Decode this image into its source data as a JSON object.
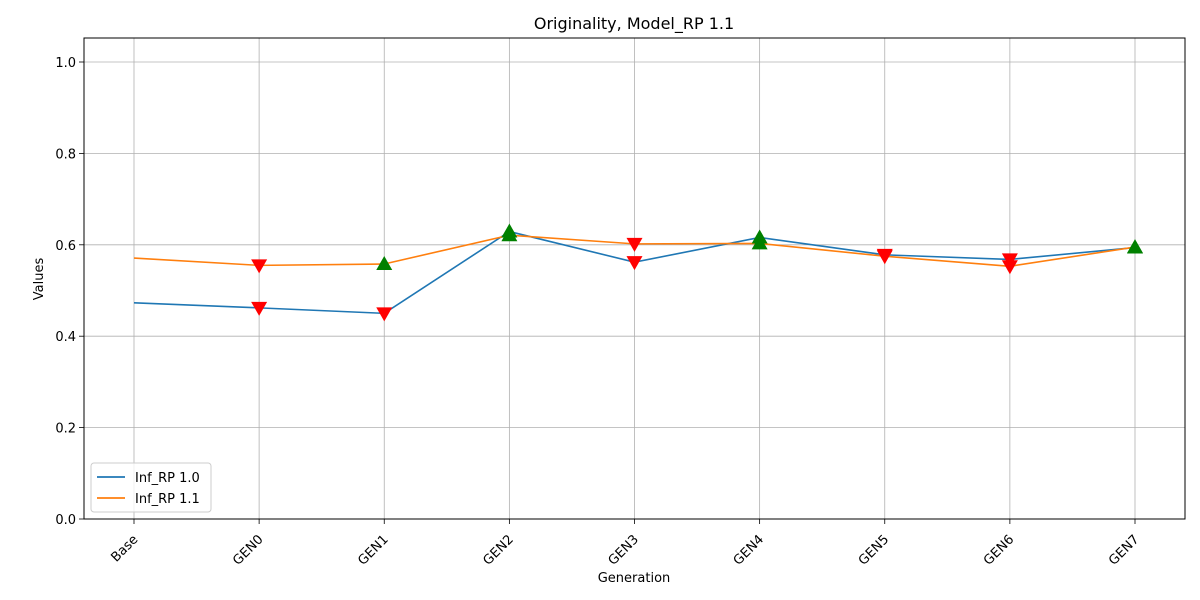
{
  "chart_data": {
    "type": "line",
    "title": "Originality, Model_RP 1.1",
    "xlabel": "Generation",
    "ylabel": "Values",
    "categories": [
      "Base",
      "GEN0",
      "GEN1",
      "GEN2",
      "GEN3",
      "GEN4",
      "GEN5",
      "GEN6",
      "GEN7"
    ],
    "ylim": [
      0.0,
      1.0
    ],
    "yticks": [
      "0.0",
      "0.2",
      "0.4",
      "0.6",
      "0.8",
      "1.0"
    ],
    "grid": true,
    "legend_position": "lower-left",
    "series": [
      {
        "name": "Inf_RP 1.0",
        "color": "#1f77b4",
        "values": [
          0.473,
          0.462,
          0.45,
          0.629,
          0.562,
          0.616,
          0.578,
          0.568,
          0.594
        ],
        "markers": [
          null,
          "down",
          "down",
          "up",
          "down",
          "up",
          "down",
          "down",
          "up"
        ]
      },
      {
        "name": "Inf_RP 1.1",
        "color": "#ff7f0e",
        "values": [
          0.571,
          0.555,
          0.558,
          0.621,
          0.602,
          0.603,
          0.575,
          0.553,
          0.595
        ],
        "markers": [
          null,
          "down",
          "up",
          "up",
          "down",
          "up",
          "down",
          "down",
          "up"
        ]
      }
    ],
    "marker_colors": {
      "up": "#008000",
      "down": "#ff0000"
    }
  }
}
